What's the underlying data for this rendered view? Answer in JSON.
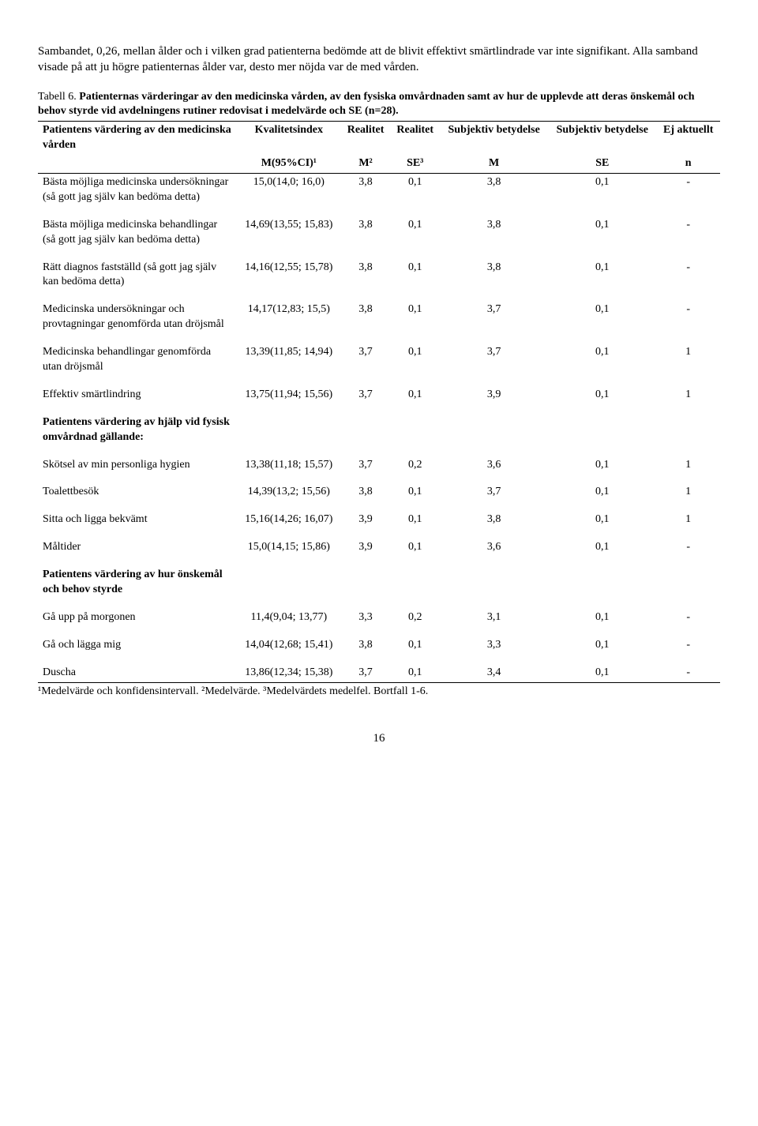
{
  "intro": "Sambandet, 0,26, mellan ålder och i vilken grad patienterna bedömde att de blivit effektivt smärtlindrade var inte signifikant. Alla samband visade på att ju högre patienternas ålder var, desto mer nöjda var de med vården.",
  "caption": {
    "label": "Tabell 6.",
    "text": "Patienternas värderingar av den medicinska vården, av den fysiska omvårdnaden samt av hur de upplevde att deras önskemål och behov styrde vid avdelningens rutiner redovisat i medelvärde och SE (n=28)."
  },
  "header": {
    "row1": [
      "Patientens värdering av den medicinska vården",
      "Kvalitetsindex",
      "Realitet",
      "Realitet",
      "Subjektiv betydelse",
      "Subjektiv betydelse",
      "Ej aktuellt"
    ],
    "row2": [
      "",
      "M(95%CI)¹",
      "M²",
      "SE³",
      "M",
      "SE",
      "n"
    ]
  },
  "rows": [
    {
      "label": "Bästa möjliga medicinska undersökningar (så gott jag själv kan bedöma detta)",
      "c": [
        "15,0(14,0; 16,0)",
        "3,8",
        "0,1",
        "3,8",
        "0,1",
        "-"
      ]
    },
    {
      "label": "Bästa möjliga medicinska behandlingar (så gott jag själv kan bedöma detta)",
      "c": [
        "14,69(13,55; 15,83)",
        "3,8",
        "0,1",
        "3,8",
        "0,1",
        "-"
      ],
      "gap": true
    },
    {
      "label": "Rätt diagnos fastställd (så gott jag själv kan bedöma detta)",
      "c": [
        "14,16(12,55; 15,78)",
        "3,8",
        "0,1",
        "3,8",
        "0,1",
        "-"
      ],
      "gap": true
    },
    {
      "label": "Medicinska undersökningar och provtagningar genomförda utan dröjsmål",
      "c": [
        "14,17(12,83; 15,5)",
        "3,8",
        "0,1",
        "3,7",
        "0,1",
        "-"
      ],
      "gap": true
    },
    {
      "label": "Medicinska behandlingar genomförda utan dröjsmål",
      "c": [
        "13,39(11,85; 14,94)",
        "3,7",
        "0,1",
        "3,7",
        "0,1",
        "1"
      ],
      "gap": true
    },
    {
      "label": "Effektiv smärtlindring",
      "c": [
        "13,75(11,94; 15,56)",
        "3,7",
        "0,1",
        "3,9",
        "0,1",
        "1"
      ],
      "gap": true
    },
    {
      "label": "Patientens värdering av hjälp vid fysisk omvårdnad gällande:",
      "c": [
        "",
        "",
        "",
        "",
        "",
        ""
      ],
      "bold": true,
      "gap": true
    },
    {
      "label": "Skötsel av min personliga hygien",
      "c": [
        "13,38(11,18; 15,57)",
        "3,7",
        "0,2",
        "3,6",
        "0,1",
        "1"
      ],
      "gap": true
    },
    {
      "label": "Toalettbesök",
      "c": [
        "14,39(13,2; 15,56)",
        "3,8",
        "0,1",
        "3,7",
        "0,1",
        "1"
      ],
      "gap": true
    },
    {
      "label": "Sitta och ligga bekvämt",
      "c": [
        "15,16(14,26; 16,07)",
        "3,9",
        "0,1",
        "3,8",
        "0,1",
        "1"
      ],
      "gap": true
    },
    {
      "label": "Måltider",
      "c": [
        "15,0(14,15; 15,86)",
        "3,9",
        "0,1",
        "3,6",
        "0,1",
        "-"
      ],
      "gap": true
    },
    {
      "label": "Patientens värdering av hur önskemål och behov styrde",
      "c": [
        "",
        "",
        "",
        "",
        "",
        ""
      ],
      "bold": true,
      "gap": true
    },
    {
      "label": "Gå upp på morgonen",
      "c": [
        "11,4(9,04; 13,77)",
        "3,3",
        "0,2",
        "3,1",
        "0,1",
        "-"
      ],
      "gap": true
    },
    {
      "label": "Gå och lägga mig",
      "c": [
        "14,04(12,68; 15,41)",
        "3,8",
        "0,1",
        "3,3",
        "0,1",
        "-"
      ],
      "gap": true
    },
    {
      "label": "Duscha",
      "c": [
        "13,86(12,34; 15,38)",
        "3,7",
        "0,1",
        "3,4",
        "0,1",
        "-"
      ],
      "gap": true,
      "last": true
    }
  ],
  "footnote": "¹Medelvärde och konfidensintervall. ²Medelvärde. ³Medelvärdets medelfel. Bortfall 1-6.",
  "pagenum": "16"
}
